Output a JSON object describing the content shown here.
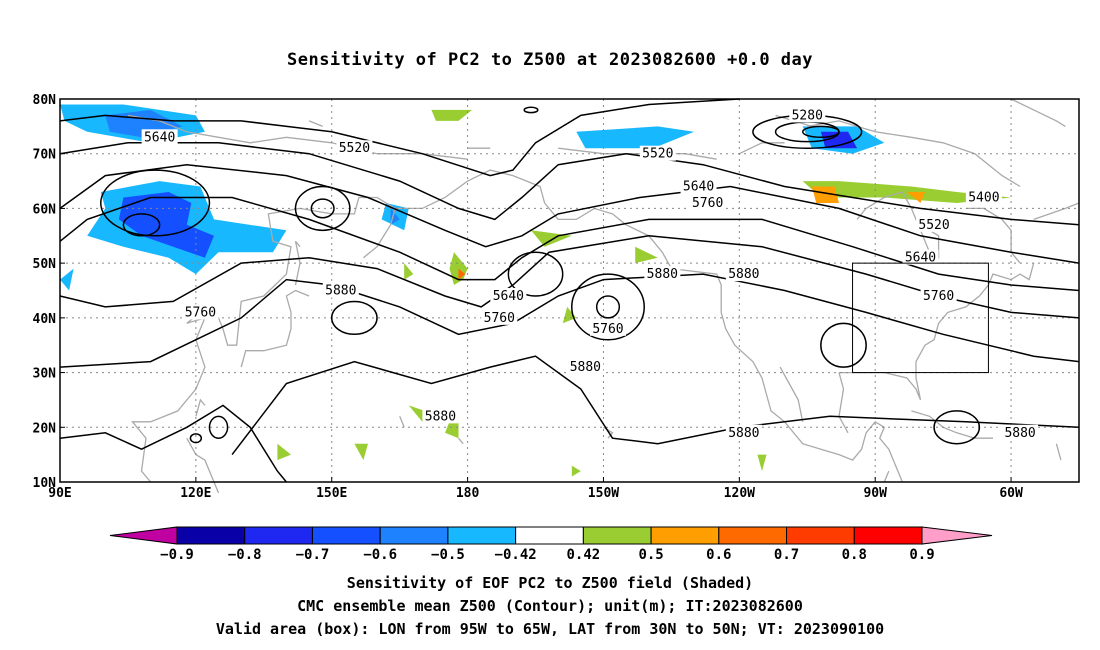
{
  "title": "Sensitivity of PC2 to Z500 at 2023082600 +0.0 day",
  "map": {
    "lon_ticks": [
      "90E",
      "120E",
      "150E",
      "180",
      "150W",
      "120W",
      "90W",
      "60W"
    ],
    "lat_ticks": [
      "80N",
      "70N",
      "60N",
      "50N",
      "40N",
      "30N",
      "20N",
      "10N"
    ],
    "extent": {
      "lon_min": 90,
      "lon_max": 315,
      "lat_min": 10,
      "lat_max": 80
    },
    "valid_box": {
      "lon_west": "95W",
      "lon_east": "65W",
      "lat_south": "30N",
      "lat_north": "50N"
    },
    "contour_labels": [
      {
        "text": "5640",
        "lon": 112,
        "lat": 73
      },
      {
        "text": "5520",
        "lon": 155,
        "lat": 71
      },
      {
        "text": "5280",
        "lon": 255,
        "lat": 77
      },
      {
        "text": "5520",
        "lon": 222,
        "lat": 70
      },
      {
        "text": "5640",
        "lon": 231,
        "lat": 64
      },
      {
        "text": "5760",
        "lon": 233,
        "lat": 61
      },
      {
        "text": "5400",
        "lon": 294,
        "lat": 62
      },
      {
        "text": "5520",
        "lon": 283,
        "lat": 57
      },
      {
        "text": "5640",
        "lon": 280,
        "lat": 51
      },
      {
        "text": "5760",
        "lon": 284,
        "lat": 44
      },
      {
        "text": "5880",
        "lon": 241,
        "lat": 48
      },
      {
        "text": "5880",
        "lon": 223,
        "lat": 48
      },
      {
        "text": "5760",
        "lon": 211,
        "lat": 38
      },
      {
        "text": "5640",
        "lon": 189,
        "lat": 44
      },
      {
        "text": "5760",
        "lon": 187,
        "lat": 40
      },
      {
        "text": "5880",
        "lon": 152,
        "lat": 45
      },
      {
        "text": "5760",
        "lon": 121,
        "lat": 41
      },
      {
        "text": "5880",
        "lon": 206,
        "lat": 31
      },
      {
        "text": "5880",
        "lon": 174,
        "lat": 22
      },
      {
        "text": "5880",
        "lon": 241,
        "lat": 19
      },
      {
        "text": "5880",
        "lon": 302,
        "lat": 19
      }
    ]
  },
  "colorbar": {
    "labels": [
      "−0.9",
      "−0.8",
      "−0.7",
      "−0.6",
      "−0.5",
      "−0.42",
      "0.42",
      "0.5",
      "0.6",
      "0.7",
      "0.8",
      "0.9"
    ],
    "colors": [
      "#0a00a8",
      "#1e28f0",
      "#1450ff",
      "#1e82ff",
      "#18b8ff",
      "#ffffff",
      "#9acd32",
      "#ff9e00",
      "#ff6a00",
      "#ff3c00",
      "#ff0000"
    ],
    "low_end_color": "#c000a0",
    "high_end_color": "#ff9ec8"
  },
  "footer": {
    "line1": "Sensitivity of EOF PC2 to Z500 field (Shaded)",
    "line2": "CMC ensemble mean Z500 (Contour); unit(m); IT:2023082600",
    "line3": "Valid area (box): LON from 95W to 65W, LAT from 30N to 50N; VT: 2023090100"
  }
}
